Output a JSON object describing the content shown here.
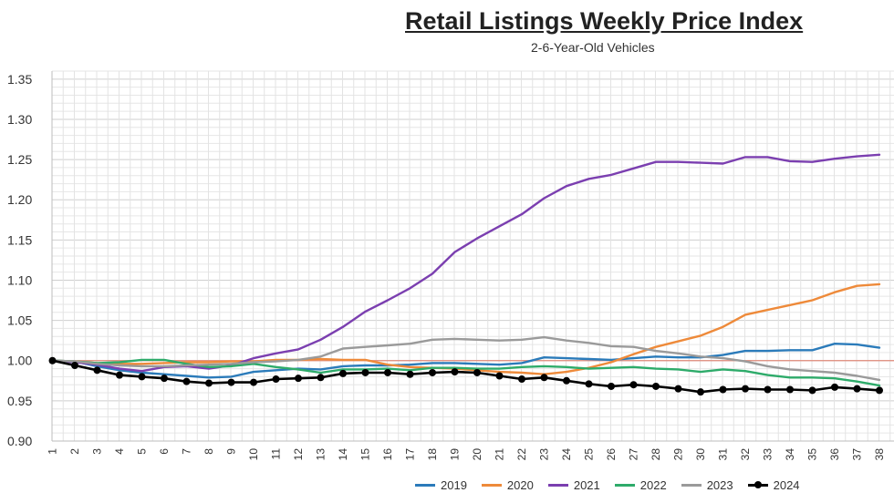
{
  "chart_data": {
    "type": "line",
    "title": "Retail Listings Weekly Price Index",
    "subtitle": "2-6-Year-Old Vehicles",
    "xlabel": "",
    "ylabel": "",
    "ylim": [
      0.9,
      1.36
    ],
    "yticks": [
      "0.90",
      "0.95",
      "1.00",
      "1.05",
      "1.10",
      "1.15",
      "1.20",
      "1.25",
      "1.30",
      "1.35"
    ],
    "x": [
      1,
      2,
      3,
      4,
      5,
      6,
      7,
      8,
      9,
      10,
      11,
      12,
      13,
      14,
      15,
      16,
      17,
      18,
      19,
      20,
      21,
      22,
      23,
      24,
      25,
      26,
      27,
      28,
      29,
      30,
      31,
      32,
      33,
      34,
      35,
      36,
      37,
      38
    ],
    "reference_line": 1.0,
    "grid": true,
    "legend_position": "bottom",
    "series": [
      {
        "name": "2019",
        "color": "#2b7bba",
        "markers": false,
        "values": [
          1.0,
          0.999,
          0.993,
          0.988,
          0.985,
          0.983,
          0.981,
          0.979,
          0.98,
          0.986,
          0.988,
          0.99,
          0.989,
          0.993,
          0.994,
          0.994,
          0.995,
          0.997,
          0.997,
          0.996,
          0.995,
          0.997,
          1.004,
          1.003,
          1.002,
          1.001,
          1.003,
          1.005,
          1.004,
          1.004,
          1.007,
          1.012,
          1.012,
          1.013,
          1.013,
          1.021,
          1.02,
          1.016
        ]
      },
      {
        "name": "2020",
        "color": "#ee8a3a",
        "markers": false,
        "values": [
          1.0,
          0.999,
          0.997,
          0.996,
          0.996,
          0.997,
          0.998,
          0.998,
          0.999,
          0.999,
          1.001,
          1.001,
          1.002,
          1.001,
          1.001,
          0.995,
          0.992,
          0.991,
          0.99,
          0.988,
          0.986,
          0.985,
          0.983,
          0.986,
          0.991,
          0.998,
          1.008,
          1.017,
          1.024,
          1.031,
          1.042,
          1.057,
          1.063,
          1.069,
          1.075,
          1.085,
          1.093,
          1.095
        ]
      },
      {
        "name": "2021",
        "color": "#7b3fb0",
        "markers": false,
        "values": [
          1.0,
          0.998,
          0.995,
          0.99,
          0.987,
          0.992,
          0.993,
          0.99,
          0.994,
          1.003,
          1.009,
          1.014,
          1.026,
          1.042,
          1.061,
          1.075,
          1.09,
          1.108,
          1.135,
          1.152,
          1.167,
          1.182,
          1.202,
          1.217,
          1.226,
          1.231,
          1.239,
          1.247,
          1.247,
          1.246,
          1.245,
          1.253,
          1.253,
          1.248,
          1.247,
          1.251,
          1.254,
          1.256
        ]
      },
      {
        "name": "2022",
        "color": "#2eab6a",
        "markers": false,
        "values": [
          1.0,
          0.999,
          0.997,
          0.998,
          1.001,
          1.001,
          0.996,
          0.992,
          0.993,
          0.996,
          0.992,
          0.989,
          0.985,
          0.989,
          0.989,
          0.99,
          0.988,
          0.991,
          0.991,
          0.99,
          0.99,
          0.992,
          0.993,
          0.992,
          0.99,
          0.991,
          0.992,
          0.99,
          0.989,
          0.986,
          0.989,
          0.987,
          0.982,
          0.979,
          0.979,
          0.978,
          0.974,
          0.969
        ]
      },
      {
        "name": "2023",
        "color": "#9a9a9a",
        "markers": false,
        "values": [
          1.0,
          0.999,
          0.996,
          0.994,
          0.993,
          0.993,
          0.994,
          0.995,
          0.996,
          0.998,
          0.999,
          1.001,
          1.005,
          1.015,
          1.017,
          1.019,
          1.021,
          1.026,
          1.027,
          1.026,
          1.025,
          1.026,
          1.029,
          1.025,
          1.022,
          1.018,
          1.017,
          1.012,
          1.009,
          1.005,
          1.003,
          0.999,
          0.993,
          0.989,
          0.987,
          0.985,
          0.981,
          0.976
        ]
      },
      {
        "name": "2024",
        "color": "#000000",
        "markers": true,
        "values": [
          1.0,
          0.994,
          0.988,
          0.982,
          0.98,
          0.978,
          0.974,
          0.972,
          0.973,
          0.973,
          0.977,
          0.978,
          0.979,
          0.984,
          0.985,
          0.985,
          0.983,
          0.985,
          0.986,
          0.985,
          0.981,
          0.977,
          0.979,
          0.975,
          0.971,
          0.968,
          0.97,
          0.968,
          0.965,
          0.961,
          0.964,
          0.965,
          0.964,
          0.964,
          0.963,
          0.967,
          0.965,
          0.963
        ]
      }
    ]
  }
}
